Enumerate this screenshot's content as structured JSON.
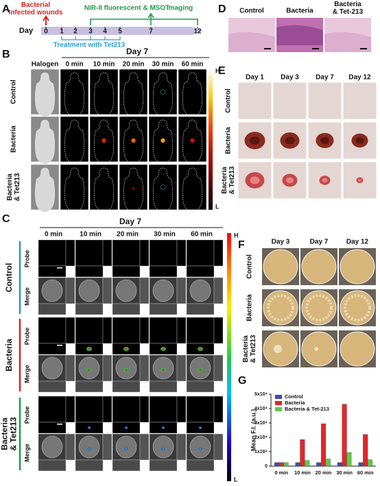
{
  "panel_a": {
    "letter": "A",
    "day_label": "Day",
    "days": [
      "0",
      "1",
      "2",
      "3",
      "4",
      "5",
      "7",
      "12"
    ],
    "infection_label": [
      "Bacterial",
      "Infected wounds"
    ],
    "imaging_label": "NIR-II fluorescent & MSOT",
    "imaging_label_2": "Imaging",
    "treatment_label": "Treatment with Tet213"
  },
  "panel_b": {
    "letter": "B",
    "timepoint": "Day 7",
    "columns": [
      "Halogen",
      "0 min",
      "10 min",
      "20 min",
      "30 min",
      "60 min"
    ],
    "rows": [
      [
        "Control"
      ],
      [
        "Bacteria"
      ],
      [
        "Bacteria",
        "& Tet213"
      ]
    ],
    "scale_high": "H",
    "scale_low": "L"
  },
  "panel_c": {
    "letter": "C",
    "timepoint": "Day 7",
    "columns": [
      "0 min",
      "10 min",
      "20 min",
      "30 min",
      "60 min"
    ],
    "groups": [
      [
        "Control"
      ],
      [
        "Bacteria"
      ],
      [
        "Bacteria",
        "& Tet213"
      ]
    ],
    "channels": [
      "Probe",
      "Merge"
    ],
    "scale_high": "H",
    "scale_low": "L"
  },
  "panel_d": {
    "letter": "D",
    "columns": [
      [
        "Control"
      ],
      [
        "Bacteria"
      ],
      [
        "Bacteria",
        "& Tet-213"
      ]
    ]
  },
  "panel_e": {
    "letter": "E",
    "columns": [
      "Day 1",
      "Day 3",
      "Day 7",
      "Day 12"
    ],
    "rows": [
      [
        "Control"
      ],
      [
        "Bacteria"
      ],
      [
        "Bacteria",
        "& Tet213"
      ]
    ]
  },
  "panel_f": {
    "letter": "F",
    "columns": [
      "Day 3",
      "Day 7",
      "Day 12"
    ],
    "rows": [
      [
        "Control"
      ],
      [
        "Bacteria"
      ],
      [
        "Bacteria",
        "& Tet213"
      ]
    ]
  },
  "panel_g": {
    "letter": "G",
    "chart_data": {
      "type": "bar",
      "y_label": "Mean F.I. (a.u.)",
      "categories": [
        "0 min",
        "10 min",
        "20 min",
        "30 min",
        "60 min"
      ],
      "series": [
        {
          "name": "Control",
          "color": "#3b4fae",
          "values": [
            2500,
            2500,
            2500,
            2500,
            2500
          ]
        },
        {
          "name": "Bacteria",
          "color": "#e3262b",
          "values": [
            2500,
            18500,
            29500,
            43000,
            22000
          ]
        },
        {
          "name": "Bacteria & Tet-213",
          "color": "#5cc94a",
          "values": [
            2500,
            4000,
            5000,
            9500,
            4500
          ]
        }
      ],
      "ylim": [
        0,
        50000
      ],
      "yticks": [
        0,
        {
          "value": 10000,
          "label": "1x10⁴"
        },
        {
          "value": 20000,
          "label": "2x10⁴"
        },
        {
          "value": 30000,
          "label": "3x10⁴"
        },
        {
          "value": 40000,
          "label": "4x10⁴"
        },
        {
          "value": 50000,
          "label": "5x10⁴"
        }
      ],
      "legend": "upper left"
    }
  }
}
